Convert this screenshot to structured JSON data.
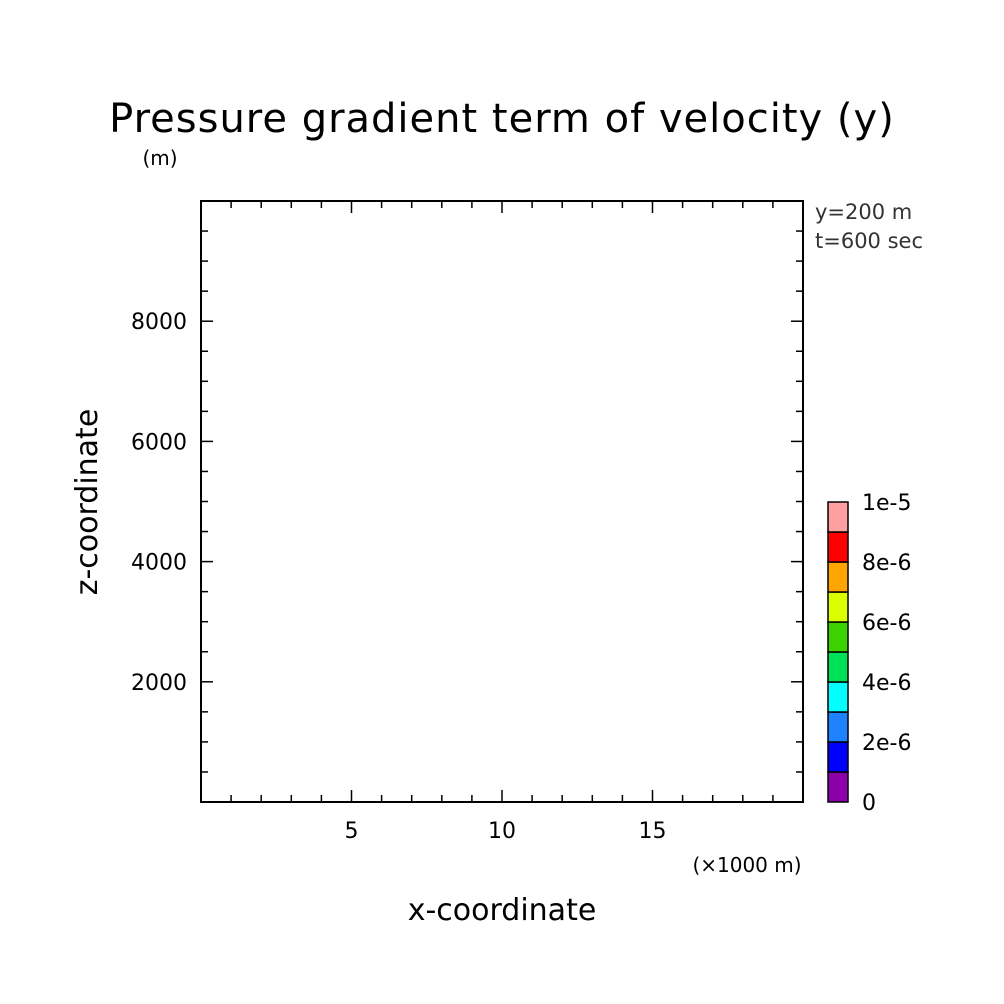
{
  "chart_data": {
    "type": "heatmap",
    "title": "Pressure gradient term of velocity (y)",
    "xlabel": "x-coordinate",
    "ylabel": "z-coordinate",
    "x_unit": "(×1000 m)",
    "y_unit": "(m)",
    "xlim": [
      0,
      20
    ],
    "ylim": [
      0,
      10000
    ],
    "x_major_ticks": [
      5,
      10,
      15
    ],
    "x_minor_step": 1,
    "y_major_ticks": [
      2000,
      4000,
      6000,
      8000
    ],
    "y_minor_step": 500,
    "info_lines": [
      "y=200 m",
      "t=600 sec"
    ],
    "field_values": [],
    "colorbar": {
      "levels": [
        0,
        1e-06,
        2e-06,
        3e-06,
        4e-06,
        5e-06,
        6e-06,
        7e-06,
        8e-06,
        9e-06,
        1e-05
      ],
      "colors": [
        "#8b00a8",
        "#0000ff",
        "#1e82ff",
        "#00ffff",
        "#00e15a",
        "#3cd200",
        "#dcff00",
        "#ffa500",
        "#ff0000",
        "#ffa0a0"
      ],
      "labels": [
        {
          "value": 0,
          "text": "0"
        },
        {
          "value": 2e-06,
          "text": "2e-6"
        },
        {
          "value": 4e-06,
          "text": "4e-6"
        },
        {
          "value": 6e-06,
          "text": "6e-6"
        },
        {
          "value": 8e-06,
          "text": "8e-6"
        },
        {
          "value": 1e-05,
          "text": "1e-5"
        }
      ]
    }
  }
}
